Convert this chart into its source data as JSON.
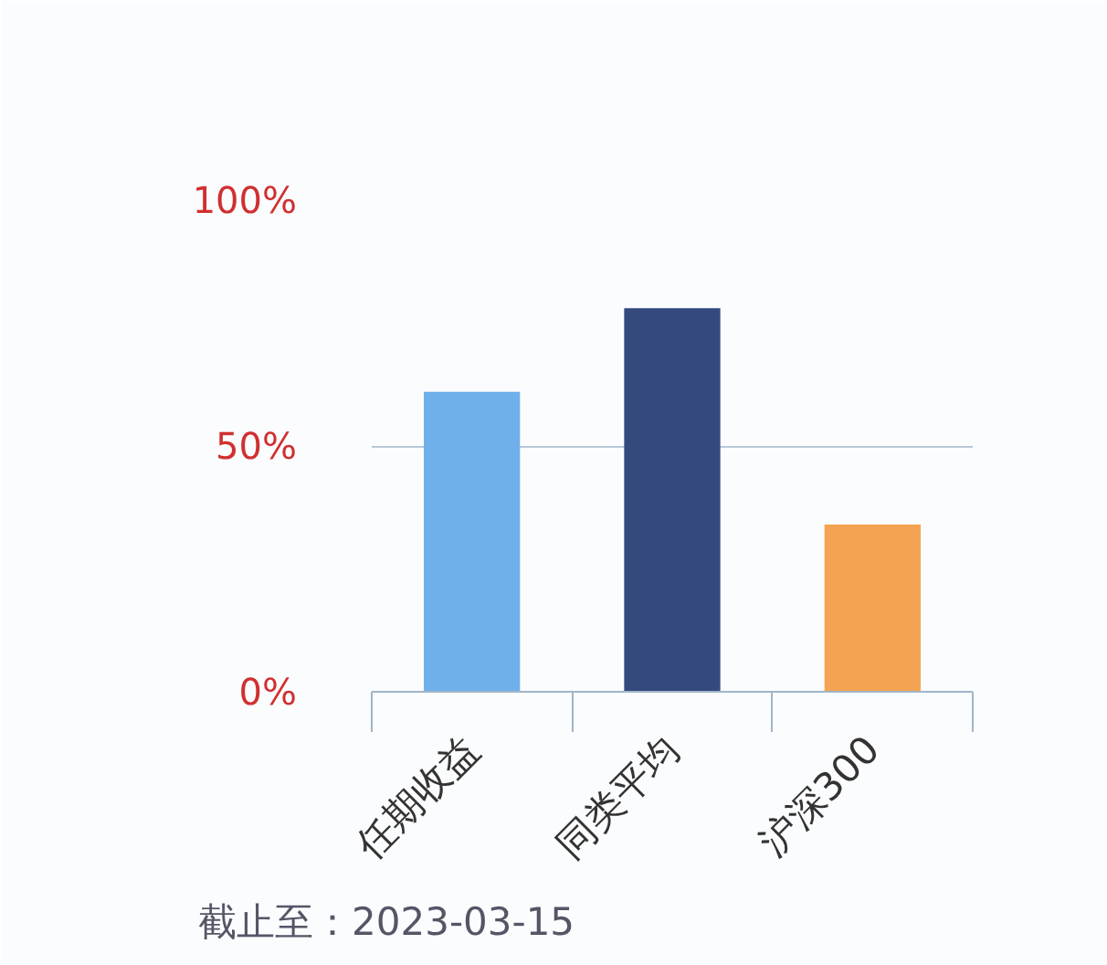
{
  "chart_data": {
    "type": "bar",
    "categories": [
      "任期收益",
      "同类平均",
      "沪深300"
    ],
    "values": [
      61,
      78,
      34
    ],
    "colors": [
      "#6fb0ea",
      "#344a7e",
      "#f4a352"
    ],
    "ylim": [
      0,
      100
    ],
    "yticks": [
      {
        "value": 0,
        "label": "0%"
      },
      {
        "value": 50,
        "label": "50%"
      },
      {
        "value": 100,
        "label": "100%"
      }
    ],
    "grid": "y",
    "annotations": [
      "截止至：2023-03-15"
    ]
  }
}
